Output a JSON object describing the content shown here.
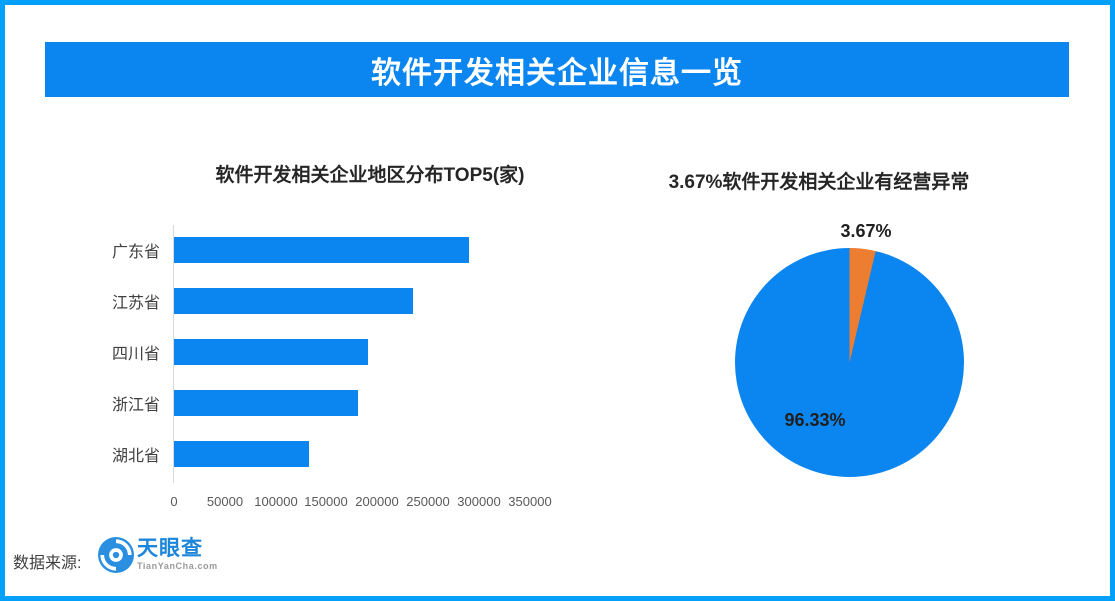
{
  "page": {
    "border_color": "#02A0F8",
    "background": "#FFFFFF"
  },
  "header": {
    "title": "软件开发相关企业信息一览",
    "bg_color": "#0B86F0",
    "text_color": "#FFFFFF"
  },
  "chart_data": [
    {
      "type": "bar",
      "orientation": "horizontal",
      "title": "软件开发相关企业地区分布TOP5(家)",
      "categories": [
        "广东省",
        "江苏省",
        "四川省",
        "浙江省",
        "湖北省"
      ],
      "values": [
        290000,
        235000,
        191000,
        181000,
        133000
      ],
      "xlim": [
        0,
        350000
      ],
      "x_ticks": [
        0,
        50000,
        100000,
        150000,
        200000,
        250000,
        300000,
        350000
      ],
      "xlabel": "",
      "ylabel": "",
      "bar_color": "#0B86F0",
      "axis_color": "#D9D9D9",
      "grid": false,
      "legend": "none"
    },
    {
      "type": "pie",
      "title": "3.67%软件开发相关企业有经营异常",
      "slices": [
        {
          "label": "3.67%",
          "value": 3.67,
          "color": "#ED7D31"
        },
        {
          "label": "96.33%",
          "value": 96.33,
          "color": "#0B86F0"
        }
      ],
      "start_angle_deg": 0,
      "direction": "clockwise",
      "legend": "none"
    }
  ],
  "footer": {
    "source_label": "数据来源:",
    "logo_text": "天眼查",
    "logo_subtext": "TianYanCha.com"
  }
}
